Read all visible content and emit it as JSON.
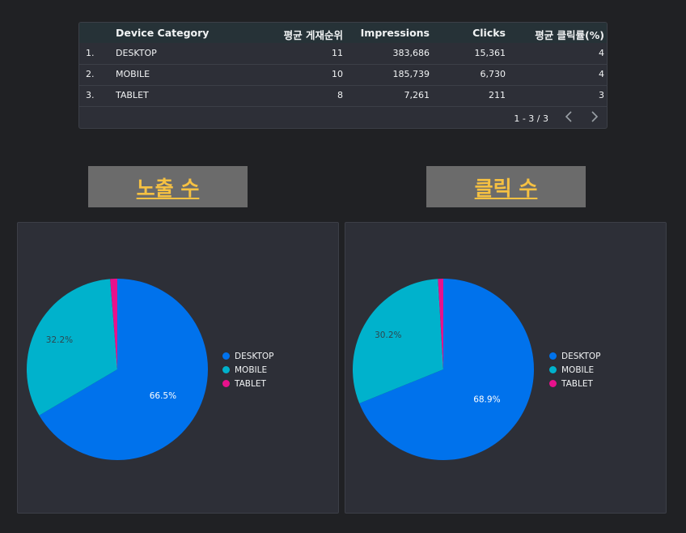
{
  "table": {
    "headers": [
      "Device Category",
      "평균 게재순위",
      "Impressions",
      "Clicks",
      "평균 클릭률(%)"
    ],
    "rows": [
      {
        "index": "1.",
        "device": "DESKTOP",
        "avg_position": "11",
        "impressions": "383,686",
        "clicks": "15,361",
        "ctr": "4"
      },
      {
        "index": "2.",
        "device": "MOBILE",
        "avg_position": "10",
        "impressions": "185,739",
        "clicks": "6,730",
        "ctr": "4"
      },
      {
        "index": "3.",
        "device": "TABLET",
        "avg_position": "8",
        "impressions": "7,261",
        "clicks": "211",
        "ctr": "3"
      }
    ],
    "pagination": "1 - 3 / 3"
  },
  "titles": {
    "impressions": "노출 수",
    "clicks": "클릭 수"
  },
  "colors": {
    "DESKTOP": "#0072ec",
    "MOBILE": "#00b2cc",
    "TABLET": "#e8118c"
  },
  "chart_data": [
    {
      "type": "pie",
      "title": "노출 수",
      "categories": [
        "DESKTOP",
        "MOBILE",
        "TABLET"
      ],
      "values": [
        383686,
        185739,
        7261
      ],
      "slice_labels": [
        "66.5%",
        "32.2%",
        ""
      ],
      "legend": "right"
    },
    {
      "type": "pie",
      "title": "클릭 수",
      "categories": [
        "DESKTOP",
        "MOBILE",
        "TABLET"
      ],
      "values": [
        15361,
        6730,
        211
      ],
      "slice_labels": [
        "68.9%",
        "30.2%",
        ""
      ],
      "legend": "right"
    }
  ]
}
